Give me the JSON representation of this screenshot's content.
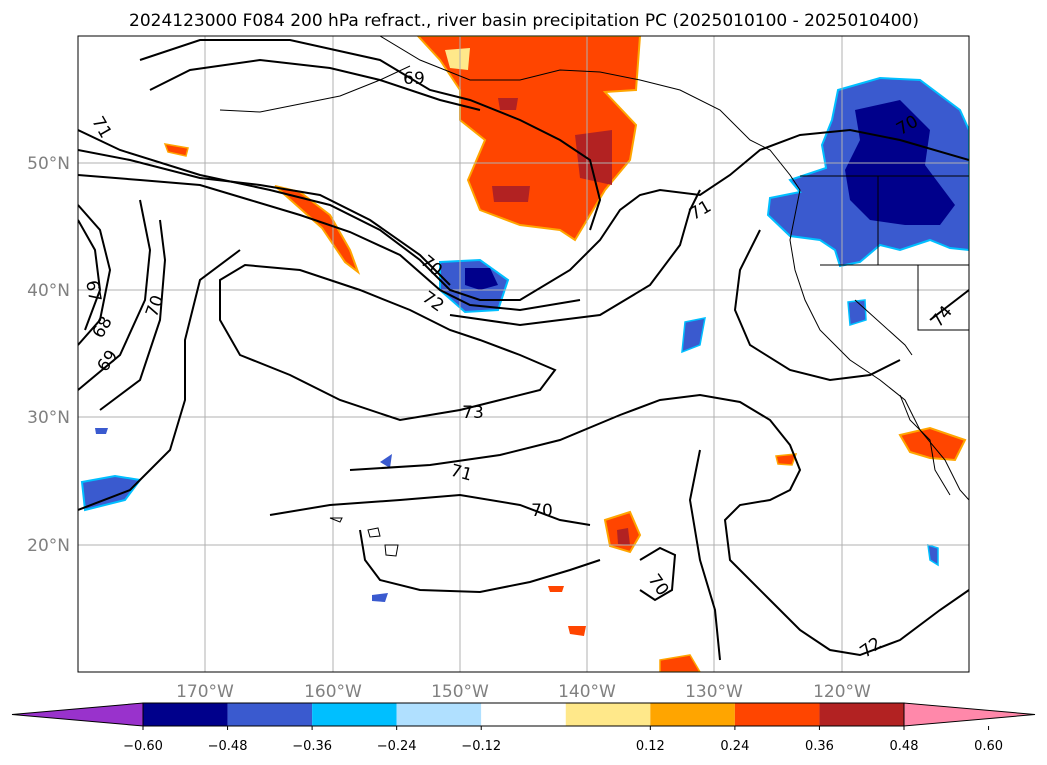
{
  "title": "2024123000 F084 200 hPa refract., river basin precipitation PC (2025010100 - 2025010400)",
  "map": {
    "projection": "PlateCarree",
    "lon_range": [
      -180,
      -110
    ],
    "lat_range": [
      10,
      60
    ],
    "gridlines": true,
    "coastlines": true,
    "lon_ticks": [
      -170,
      -160,
      -150,
      -140,
      -130,
      -120
    ],
    "lon_tick_labels": [
      "170°W",
      "160°W",
      "150°W",
      "140°W",
      "130°W",
      "120°W"
    ],
    "lat_ticks": [
      20,
      30,
      40,
      50
    ],
    "lat_tick_labels": [
      "20°N",
      "30°N",
      "40°N",
      "50°N"
    ]
  },
  "contours": {
    "field": "200 hPa refractivity",
    "labels": [
      "69",
      "71",
      "71",
      "67",
      "68",
      "69",
      "70",
      "70",
      "72",
      "73",
      "71",
      "70",
      "70",
      "72",
      "74",
      "70"
    ]
  },
  "colorbar": {
    "extend": "both",
    "tick_labels": [
      "−0.60",
      "−0.48",
      "−0.36",
      "−0.24",
      "−0.12",
      "0.12",
      "0.24",
      "0.36",
      "0.48",
      "0.60"
    ],
    "colors": [
      "#9932cc",
      "#00008b",
      "#3a5acf",
      "#00bfff",
      "#b0e0ff",
      "#ffffff",
      "#ffe88a",
      "#ffa500",
      "#ff4500",
      "#b22222",
      "#ff88aa"
    ]
  },
  "colors": {
    "contour": "#000000",
    "grid": "#b0b0b0",
    "tick_label": "#808080"
  }
}
